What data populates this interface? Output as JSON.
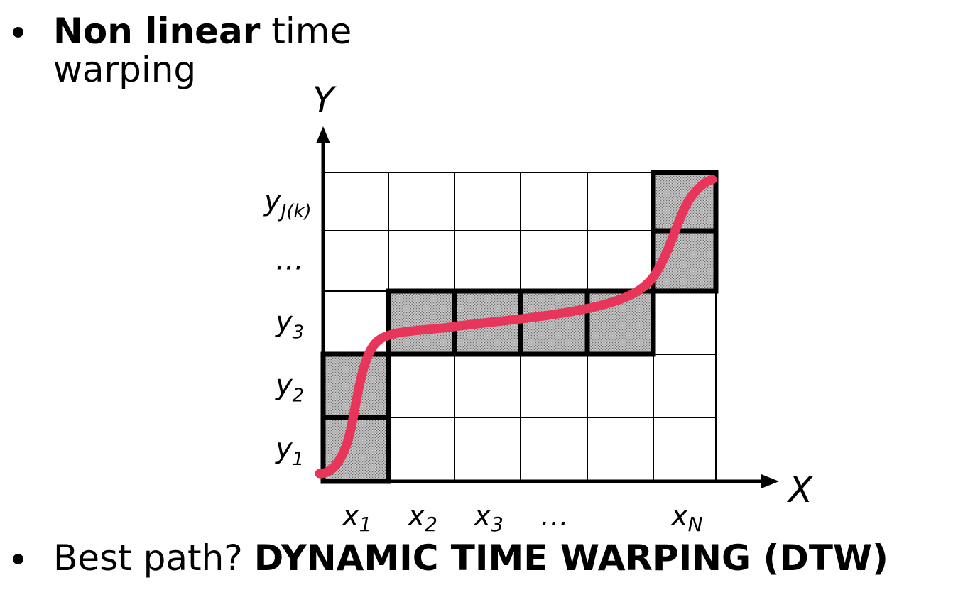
{
  "bullets": [
    {
      "bold": "Non linear",
      "rest_line1": " time",
      "rest_line2": "warping"
    },
    {
      "prefix": "Best path? ",
      "bold": "DYNAMIC TIME WARPING (DTW)"
    }
  ],
  "diagram": {
    "x_axis_label": "X",
    "y_axis_label": "Y",
    "x_ticks": [
      {
        "base": "x",
        "sub": "1"
      },
      {
        "base": "x",
        "sub": "2"
      },
      {
        "base": "x",
        "sub": "3"
      },
      {
        "base": "…",
        "sub": ""
      },
      {
        "base": "",
        "sub": ""
      },
      {
        "base": "x",
        "sub": "N"
      }
    ],
    "y_ticks": [
      {
        "base": "y",
        "sub": "1"
      },
      {
        "base": "y",
        "sub": "2"
      },
      {
        "base": "y",
        "sub": "3"
      },
      {
        "base": "…",
        "sub": ""
      },
      {
        "base": "y",
        "sub": "J(k)"
      }
    ],
    "grid": {
      "cols": 6,
      "rows": 5
    },
    "highlighted_cells": [
      [
        0,
        0
      ],
      [
        0,
        1
      ],
      [
        1,
        2
      ],
      [
        2,
        2
      ],
      [
        3,
        2
      ],
      [
        4,
        2
      ],
      [
        5,
        3
      ],
      [
        5,
        4
      ]
    ],
    "colors": {
      "path": "#e8355a",
      "cell_fill": "#a8a8a8",
      "grid_line": "#000000"
    }
  }
}
